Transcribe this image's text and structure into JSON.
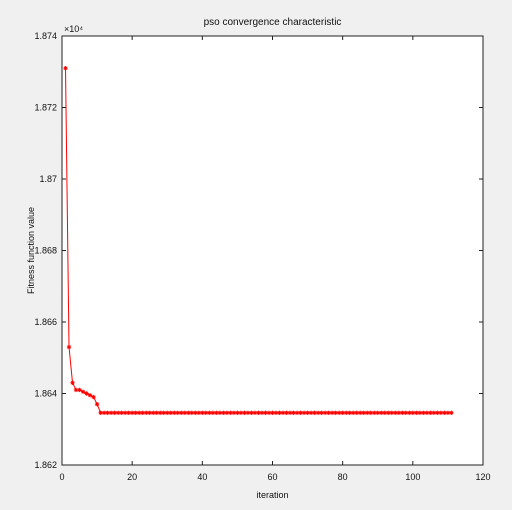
{
  "chart_data": {
    "type": "line",
    "title": "pso convergence characteristic",
    "xlabel": "iteration",
    "ylabel": "Fitness function value",
    "y_exponent_label": "×10⁴",
    "xlim": [
      0,
      120
    ],
    "ylim": [
      1.862,
      1.874
    ],
    "x_ticks": [
      0,
      20,
      40,
      60,
      80,
      100,
      120
    ],
    "y_ticks": [
      1.862,
      1.864,
      1.866,
      1.868,
      1.87,
      1.872,
      1.874
    ],
    "x_tick_labels": [
      "0",
      "20",
      "40",
      "60",
      "80",
      "100",
      "120"
    ],
    "y_tick_labels": [
      "1.862",
      "1.864",
      "1.866",
      "1.868",
      "1.87",
      "1.872",
      "1.874"
    ],
    "grid": false,
    "series": [
      {
        "marker": "*",
        "color": "#ff0000",
        "x": [
          1,
          2,
          3,
          4,
          5,
          6,
          7,
          8,
          9,
          10,
          11,
          12,
          13,
          14,
          15,
          16,
          17,
          18,
          19,
          20,
          21,
          22,
          23,
          24,
          25,
          26,
          27,
          28,
          29,
          30,
          31,
          32,
          33,
          34,
          35,
          36,
          37,
          38,
          39,
          40,
          41,
          42,
          43,
          44,
          45,
          46,
          47,
          48,
          49,
          50,
          51,
          52,
          53,
          54,
          55,
          56,
          57,
          58,
          59,
          60,
          61,
          62,
          63,
          64,
          65,
          66,
          67,
          68,
          69,
          70,
          71,
          72,
          73,
          74,
          75,
          76,
          77,
          78,
          79,
          80,
          81,
          82,
          83,
          84,
          85,
          86,
          87,
          88,
          89,
          90,
          91,
          92,
          93,
          94,
          95,
          96,
          97,
          98,
          99,
          100,
          101,
          102,
          103,
          104,
          105,
          106,
          107,
          108,
          109,
          110,
          111
        ],
        "y": [
          1.8731,
          1.8653,
          1.8643,
          1.8641,
          1.8641,
          1.86405,
          1.864,
          1.86395,
          1.8639,
          1.8637,
          1.86346,
          1.86346,
          1.86346,
          1.86346,
          1.86346,
          1.86346,
          1.86346,
          1.86346,
          1.86346,
          1.86346,
          1.86346,
          1.86346,
          1.86346,
          1.86346,
          1.86346,
          1.86346,
          1.86346,
          1.86346,
          1.86346,
          1.86346,
          1.86346,
          1.86346,
          1.86346,
          1.86346,
          1.86346,
          1.86346,
          1.86346,
          1.86346,
          1.86346,
          1.86346,
          1.86346,
          1.86346,
          1.86346,
          1.86346,
          1.86346,
          1.86346,
          1.86346,
          1.86346,
          1.86346,
          1.86346,
          1.86346,
          1.86346,
          1.86346,
          1.86346,
          1.86346,
          1.86346,
          1.86346,
          1.86346,
          1.86346,
          1.86346,
          1.86346,
          1.86346,
          1.86346,
          1.86346,
          1.86346,
          1.86346,
          1.86346,
          1.86346,
          1.86346,
          1.86346,
          1.86346,
          1.86346,
          1.86346,
          1.86346,
          1.86346,
          1.86346,
          1.86346,
          1.86346,
          1.86346,
          1.86346,
          1.86346,
          1.86346,
          1.86346,
          1.86346,
          1.86346,
          1.86346,
          1.86346,
          1.86346,
          1.86346,
          1.86346,
          1.86346,
          1.86346,
          1.86346,
          1.86346,
          1.86346,
          1.86346,
          1.86346,
          1.86346,
          1.86346,
          1.86346,
          1.86346,
          1.86346,
          1.86346,
          1.86346,
          1.86346,
          1.86346,
          1.86346,
          1.86346,
          1.86346,
          1.86346,
          1.86346
        ]
      }
    ]
  }
}
